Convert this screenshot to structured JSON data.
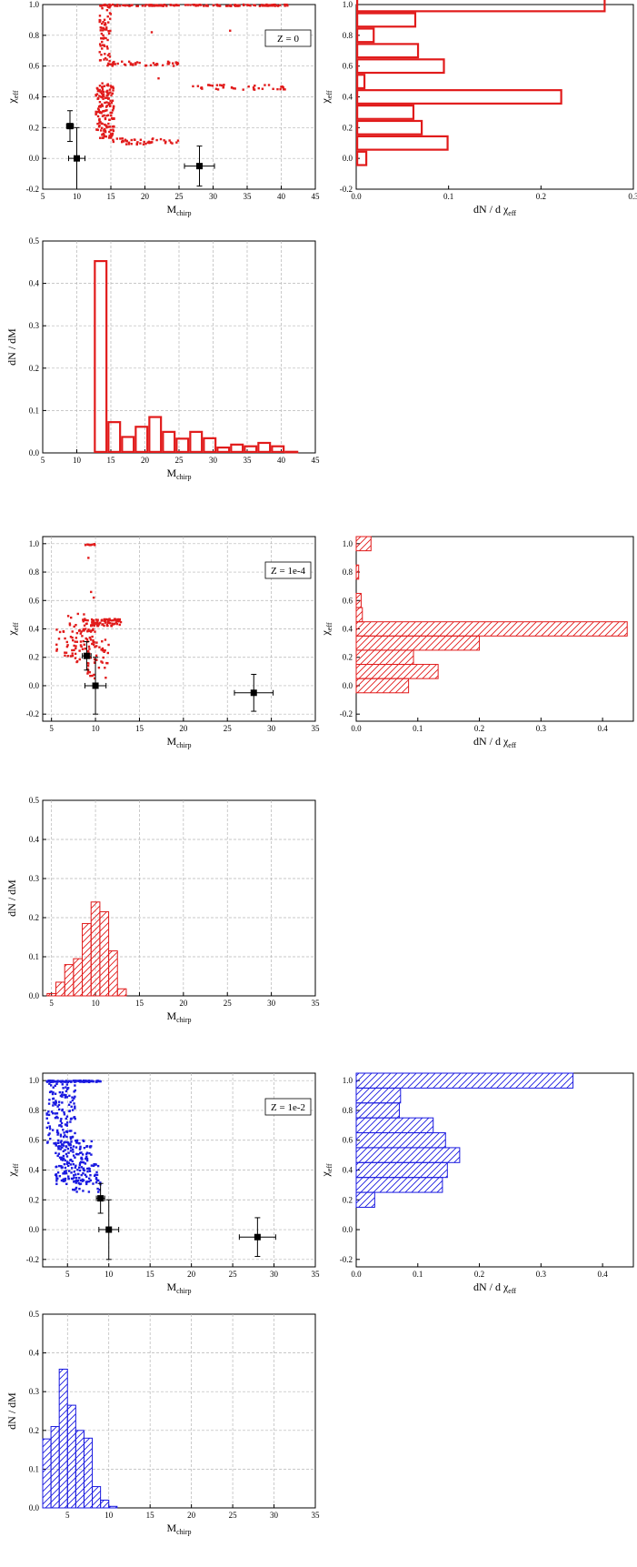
{
  "chart_data": [
    {
      "id": "s0",
      "type": "scatter",
      "color": "#e11b1b",
      "annotation": "Z = 0",
      "xlabel": "M",
      "xlabel_sub": "chirp",
      "ylabel": "χ",
      "ylabel_sub": "eff",
      "xlim": [
        5,
        45
      ],
      "ylim": [
        -0.2,
        1.0
      ],
      "xticks": [
        "5",
        "10",
        "15",
        "20",
        "25",
        "30",
        "35",
        "40",
        "45"
      ],
      "yticks": [
        "-0.2",
        "0.0",
        "0.2",
        "0.4",
        "0.6",
        "0.8",
        "1.0"
      ],
      "grid": true,
      "clusters": [
        {
          "x": [
            13.3,
            41
          ],
          "y": [
            0.99,
            1.0
          ],
          "n": 140
        },
        {
          "x": [
            13.3,
            15
          ],
          "y": [
            0.62,
            0.99
          ],
          "n": 60
        },
        {
          "x": [
            14.5,
            25
          ],
          "y": [
            0.6,
            0.63
          ],
          "n": 45
        },
        {
          "x": [
            27,
            41
          ],
          "y": [
            0.44,
            0.48
          ],
          "n": 40
        },
        {
          "x": [
            12.8,
            15.5
          ],
          "y": [
            0.13,
            0.49
          ],
          "n": 160
        },
        {
          "x": [
            15,
            25
          ],
          "y": [
            0.09,
            0.13
          ],
          "n": 45
        }
      ],
      "extra_points": [
        {
          "x": 21,
          "y": 0.82
        },
        {
          "x": 32.5,
          "y": 0.83
        },
        {
          "x": 22,
          "y": 0.52
        }
      ],
      "observations": [
        {
          "x": 9,
          "y": 0.21,
          "xerr": 0.5,
          "yerr": 0.1
        },
        {
          "x": 10,
          "y": 0.0,
          "xerr": 1.2,
          "yerr": 0.2
        },
        {
          "x": 28,
          "y": -0.05,
          "xerr": 2.2,
          "yerr": 0.13
        }
      ]
    },
    {
      "id": "hy0",
      "type": "bar",
      "orientation": "horizontal",
      "fill": "open",
      "color": "#e11b1b",
      "xlabel": "dN / d χ",
      "xlabel_sub": "eff",
      "ylabel": "χ",
      "ylabel_sub": "eff",
      "xlim": [
        0,
        0.3
      ],
      "ylim": [
        -0.2,
        1.0
      ],
      "xticks": [
        "0.0",
        "0.1",
        "0.2",
        "0.3"
      ],
      "yticks": [
        "-0.2",
        "0.0",
        "0.2",
        "0.4",
        "0.6",
        "0.8",
        "1.0"
      ],
      "grid": false,
      "bins": [
        [
          0.0,
          0.012
        ],
        [
          0.1,
          0.1
        ],
        [
          0.2,
          0.072
        ],
        [
          0.3,
          0.063
        ],
        [
          0.4,
          0.223
        ],
        [
          0.5,
          0.01
        ],
        [
          0.6,
          0.096
        ],
        [
          0.7,
          0.068
        ],
        [
          0.8,
          0.02
        ],
        [
          0.9,
          0.065
        ],
        [
          1.0,
          0.27
        ]
      ],
      "bin_width": 0.1
    },
    {
      "id": "hm0",
      "type": "bar",
      "fill": "open",
      "color": "#e11b1b",
      "xlabel": "M",
      "xlabel_sub": "chirp",
      "ylabel": "dN / dM",
      "xlim": [
        5,
        45
      ],
      "ylim": [
        0,
        0.5
      ],
      "xticks": [
        "5",
        "10",
        "15",
        "20",
        "25",
        "30",
        "35",
        "40",
        "45"
      ],
      "yticks": [
        "0.0",
        "0.1",
        "0.2",
        "0.3",
        "0.4",
        "0.5"
      ],
      "grid": true,
      "bins": [
        [
          12.5,
          0.455
        ],
        [
          14.5,
          0.075
        ],
        [
          16.5,
          0.04
        ],
        [
          18.5,
          0.064
        ],
        [
          20.5,
          0.087
        ],
        [
          22.5,
          0.052
        ],
        [
          24.5,
          0.036
        ],
        [
          26.5,
          0.052
        ],
        [
          28.5,
          0.037
        ],
        [
          30.5,
          0.015
        ],
        [
          32.5,
          0.022
        ],
        [
          34.5,
          0.018
        ],
        [
          36.5,
          0.026
        ],
        [
          38.5,
          0.018
        ],
        [
          40.5,
          0.005
        ]
      ],
      "bin_width": 2
    },
    {
      "id": "s1",
      "type": "scatter",
      "color": "#e11b1b",
      "annotation": "Z = 1e-4",
      "xlabel": "M",
      "xlabel_sub": "chirp",
      "ylabel": "χ",
      "ylabel_sub": "eff",
      "xlim": [
        4,
        35
      ],
      "ylim": [
        -0.25,
        1.05
      ],
      "xticks": [
        "5",
        "10",
        "15",
        "20",
        "25",
        "30",
        "35"
      ],
      "yticks": [
        "-0.2",
        "0.0",
        "0.2",
        "0.4",
        "0.6",
        "0.8",
        "1.0"
      ],
      "grid": true,
      "clusters": [
        {
          "x": [
            8.7,
            10
          ],
          "y": [
            0.99,
            1.0
          ],
          "n": 8
        },
        {
          "x": [
            5.5,
            10
          ],
          "y": [
            0.22,
            0.4
          ],
          "n": 50
        },
        {
          "x": [
            8.5,
            13
          ],
          "y": [
            0.42,
            0.47
          ],
          "n": 90
        },
        {
          "x": [
            9,
            11.5
          ],
          "y": [
            0.05,
            0.35
          ],
          "n": 50
        },
        {
          "x": [
            6.5,
            9
          ],
          "y": [
            0.16,
            0.52
          ],
          "n": 30
        }
      ],
      "extra_points": [
        {
          "x": 9.5,
          "y": 0.66
        },
        {
          "x": 9.8,
          "y": 0.62
        },
        {
          "x": 9.2,
          "y": 0.9
        }
      ],
      "observations": [
        {
          "x": 9,
          "y": 0.21,
          "xerr": 0.5,
          "yerr": 0.1
        },
        {
          "x": 10,
          "y": 0.0,
          "xerr": 1.2,
          "yerr": 0.2
        },
        {
          "x": 28,
          "y": -0.05,
          "xerr": 2.2,
          "yerr": 0.13
        }
      ]
    },
    {
      "id": "hy1",
      "type": "bar",
      "orientation": "horizontal",
      "fill": "hatch",
      "color": "#e11b1b",
      "xlabel": "dN / d χ",
      "xlabel_sub": "eff",
      "ylabel": "χ",
      "ylabel_sub": "eff",
      "xlim": [
        0,
        0.45
      ],
      "ylim": [
        -0.25,
        1.05
      ],
      "xticks": [
        "0.0",
        "0.1",
        "0.2",
        "0.3",
        "0.4"
      ],
      "yticks": [
        "-0.2",
        "0.0",
        "0.2",
        "0.4",
        "0.6",
        "0.8",
        "1.0"
      ],
      "grid": false,
      "bins": [
        [
          0.0,
          0.085
        ],
        [
          0.1,
          0.133
        ],
        [
          0.2,
          0.093
        ],
        [
          0.3,
          0.2
        ],
        [
          0.4,
          0.44
        ],
        [
          0.5,
          0.01
        ],
        [
          0.6,
          0.008
        ],
        [
          0.8,
          0.004
        ],
        [
          1.0,
          0.024
        ]
      ],
      "bin_width": 0.1
    },
    {
      "id": "hm1",
      "type": "bar",
      "fill": "hatch",
      "color": "#e11b1b",
      "xlabel": "M",
      "xlabel_sub": "chirp",
      "ylabel": "dN / dM",
      "xlim": [
        4,
        35
      ],
      "ylim": [
        0,
        0.5
      ],
      "xticks": [
        "5",
        "10",
        "15",
        "20",
        "25",
        "30",
        "35"
      ],
      "yticks": [
        "0.0",
        "0.1",
        "0.2",
        "0.3",
        "0.4",
        "0.5"
      ],
      "grid": true,
      "bins": [
        [
          4.5,
          0.006
        ],
        [
          5.5,
          0.035
        ],
        [
          6.5,
          0.08
        ],
        [
          7.5,
          0.095
        ],
        [
          8.5,
          0.185
        ],
        [
          9.5,
          0.24
        ],
        [
          10.5,
          0.215
        ],
        [
          11.5,
          0.115
        ],
        [
          12.5,
          0.018
        ]
      ],
      "bin_width": 1
    },
    {
      "id": "s2",
      "type": "scatter",
      "color": "#1a1ae0",
      "annotation": "Z = 1e-2",
      "xlabel": "M",
      "xlabel_sub": "chirp",
      "ylabel": "χ",
      "ylabel_sub": "eff",
      "xlim": [
        2,
        35
      ],
      "ylim": [
        -0.25,
        1.05
      ],
      "xticks": [
        "5",
        "10",
        "15",
        "20",
        "25",
        "30",
        "35"
      ],
      "yticks": [
        "-0.2",
        "0.0",
        "0.2",
        "0.4",
        "0.6",
        "0.8",
        "1.0"
      ],
      "grid": true,
      "clusters": [
        {
          "x": [
            2.5,
            9
          ],
          "y": [
            0.99,
            1.0
          ],
          "n": 90
        },
        {
          "x": [
            2.5,
            6
          ],
          "y": [
            0.55,
            0.98
          ],
          "n": 140
        },
        {
          "x": [
            3.5,
            8
          ],
          "y": [
            0.3,
            0.6
          ],
          "n": 160
        },
        {
          "x": [
            5.5,
            9
          ],
          "y": [
            0.25,
            0.45
          ],
          "n": 50
        }
      ],
      "extra_points": [],
      "observations": [
        {
          "x": 9,
          "y": 0.21,
          "xerr": 0.5,
          "yerr": 0.1
        },
        {
          "x": 10,
          "y": 0.0,
          "xerr": 1.2,
          "yerr": 0.2
        },
        {
          "x": 28,
          "y": -0.05,
          "xerr": 2.2,
          "yerr": 0.13
        }
      ]
    },
    {
      "id": "hy2",
      "type": "bar",
      "orientation": "horizontal",
      "fill": "hatch",
      "color": "#1a1ae0",
      "xlabel": "dN / d χ",
      "xlabel_sub": "eff",
      "ylabel": "χ",
      "ylabel_sub": "eff",
      "xlim": [
        0,
        0.45
      ],
      "ylim": [
        -0.25,
        1.05
      ],
      "xticks": [
        "0.0",
        "0.1",
        "0.2",
        "0.3",
        "0.4"
      ],
      "yticks": [
        "-0.2",
        "0.0",
        "0.2",
        "0.4",
        "0.6",
        "0.8",
        "1.0"
      ],
      "grid": false,
      "bins": [
        [
          0.2,
          0.03
        ],
        [
          0.3,
          0.14
        ],
        [
          0.4,
          0.148
        ],
        [
          0.5,
          0.168
        ],
        [
          0.6,
          0.145
        ],
        [
          0.7,
          0.125
        ],
        [
          0.8,
          0.07
        ],
        [
          0.9,
          0.072
        ],
        [
          1.0,
          0.352
        ]
      ],
      "bin_width": 0.1
    },
    {
      "id": "hm2",
      "type": "bar",
      "fill": "hatch",
      "color": "#1a1ae0",
      "xlabel": "M",
      "xlabel_sub": "chirp",
      "ylabel": "dN / dM",
      "xlim": [
        2,
        35
      ],
      "ylim": [
        0,
        0.5
      ],
      "xticks": [
        "5",
        "10",
        "15",
        "20",
        "25",
        "30",
        "35"
      ],
      "yticks": [
        "0.0",
        "0.1",
        "0.2",
        "0.3",
        "0.4",
        "0.5"
      ],
      "grid": true,
      "bins": [
        [
          2,
          0.178
        ],
        [
          3,
          0.21
        ],
        [
          4,
          0.358
        ],
        [
          5,
          0.265
        ],
        [
          6,
          0.2
        ],
        [
          7,
          0.18
        ],
        [
          8,
          0.055
        ],
        [
          9,
          0.02
        ],
        [
          10,
          0.004
        ]
      ],
      "bin_width": 1
    }
  ]
}
